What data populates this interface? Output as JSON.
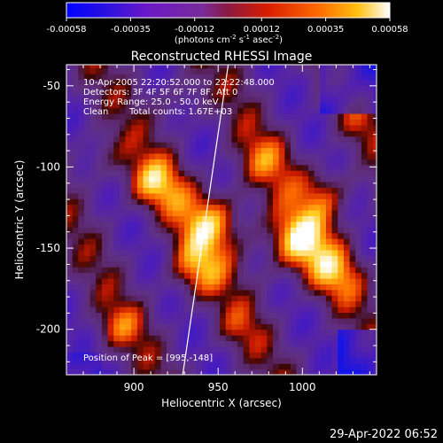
{
  "colorbar": {
    "ticks": [
      "-0.00058",
      "-0.00035",
      "-0.00012",
      "0.00012",
      "0.00035",
      "0.00058"
    ],
    "unit_main": "(photons cm",
    "unit_sup1": "-2",
    "unit_mid1": " s",
    "unit_sup2": "-1",
    "unit_mid2": " asec",
    "unit_sup3": "-2",
    "unit_end": ")",
    "range": [
      -0.00058,
      0.00058
    ]
  },
  "plot": {
    "title": "Reconstructed RHESSI Image",
    "xlabel": "Heliocentric X (arcsec)",
    "ylabel": "Heliocentric Y (arcsec)",
    "xticks": [
      "900",
      "950",
      "1000"
    ],
    "yticks": [
      "-50",
      "-100",
      "-150",
      "-200"
    ]
  },
  "annotations": {
    "line1": "10-Apr-2005 22:20:52.000 to 22:22:48.000",
    "line2": "Detectors: 3F 4F 5F 6F 7F 8F, Att 0",
    "line3": "Energy Range: 25.0 - 50.0 keV",
    "line4_left": "Clean",
    "line4_right": "Total counts: 1.67E+03",
    "peak": "Position of Peak = [995,-148]"
  },
  "footer": {
    "timestamp": "29-Apr-2022 06:52"
  },
  "chart_data": {
    "type": "heatmap",
    "title": "Reconstructed RHESSI Image",
    "xlabel": "Heliocentric X (arcsec)",
    "ylabel": "Heliocentric Y (arcsec)",
    "xlim": [
      860,
      1044
    ],
    "ylim": [
      -228,
      -37
    ],
    "x_ticks": [
      900,
      950,
      1000
    ],
    "y_ticks": [
      -50,
      -100,
      -150,
      -200
    ],
    "color_range": [
      -0.00058,
      0.00058
    ],
    "peak_position": [
      995,
      -148
    ],
    "limb_line": [
      [
        929,
        -228
      ],
      [
        956,
        -37
      ]
    ],
    "colors": {
      "negative": "#0000ff",
      "zero": "#5a2a7a",
      "positive": "#ff3000",
      "max": "#ffffff"
    }
  }
}
